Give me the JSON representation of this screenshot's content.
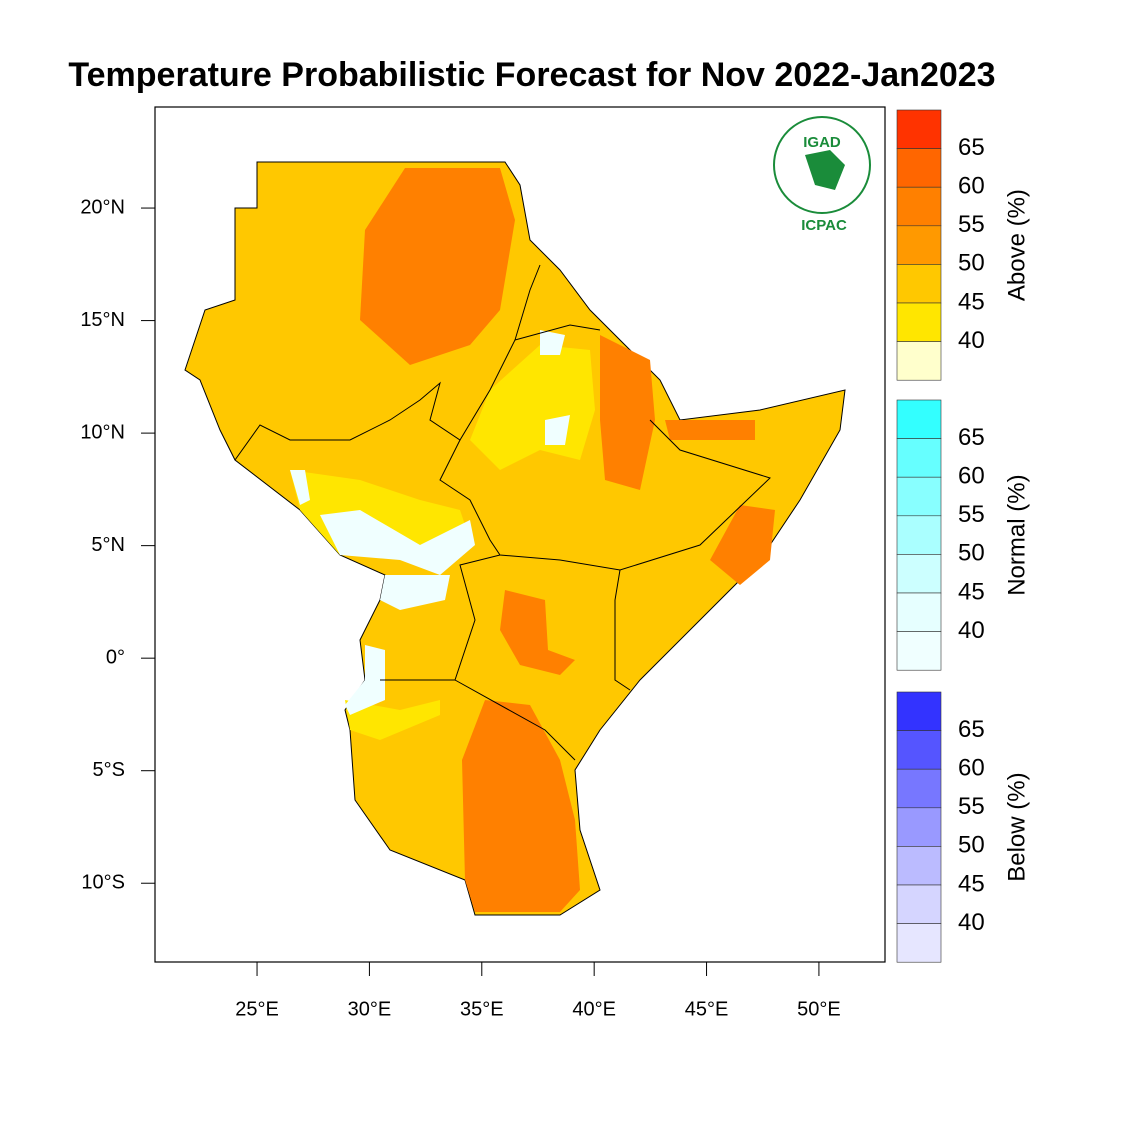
{
  "title": "Temperature Probabilistic Forecast for Nov 2022-Jan2023",
  "map": {
    "lon_range": [
      20.46,
      52.94
    ],
    "lat_range": [
      -13.5,
      24.49
    ],
    "lon_ticks": [
      {
        "value": 25,
        "label": "25°E"
      },
      {
        "value": 30,
        "label": "30°E"
      },
      {
        "value": 35,
        "label": "35°E"
      },
      {
        "value": 40,
        "label": "40°E"
      },
      {
        "value": 45,
        "label": "45°E"
      },
      {
        "value": 50,
        "label": "50°E"
      }
    ],
    "lat_ticks": [
      {
        "value": 20,
        "label": "20°N"
      },
      {
        "value": 15,
        "label": "15°N"
      },
      {
        "value": 10,
        "label": "10°N"
      },
      {
        "value": 5,
        "label": "5°N"
      },
      {
        "value": 0,
        "label": "0°"
      },
      {
        "value": -5,
        "label": "5°S"
      },
      {
        "value": -10,
        "label": "10°S"
      }
    ]
  },
  "logo": {
    "top": "IGAD",
    "bottom": "ICPAC"
  },
  "colorbars": [
    {
      "title": "Above (%)",
      "labels": [
        65,
        60,
        55,
        50,
        45,
        40
      ],
      "colors": [
        "#ff3300",
        "#ff6600",
        "#ff8000",
        "#ff9900",
        "#ffc800",
        "#ffe600",
        "#ffffcc"
      ]
    },
    {
      "title": "Normal (%)",
      "labels": [
        65,
        60,
        55,
        50,
        45,
        40
      ],
      "colors": [
        "#33ffff",
        "#66ffff",
        "#88ffff",
        "#aaffff",
        "#ccffff",
        "#e6ffff",
        "#f0ffff"
      ]
    },
    {
      "title": "Below (%)",
      "labels": [
        65,
        60,
        55,
        50,
        45,
        40
      ],
      "colors": [
        "#3333ff",
        "#5555ff",
        "#7777ff",
        "#9999ff",
        "#bbbbff",
        "#d5d5ff",
        "#e6e6ff"
      ]
    }
  ]
}
